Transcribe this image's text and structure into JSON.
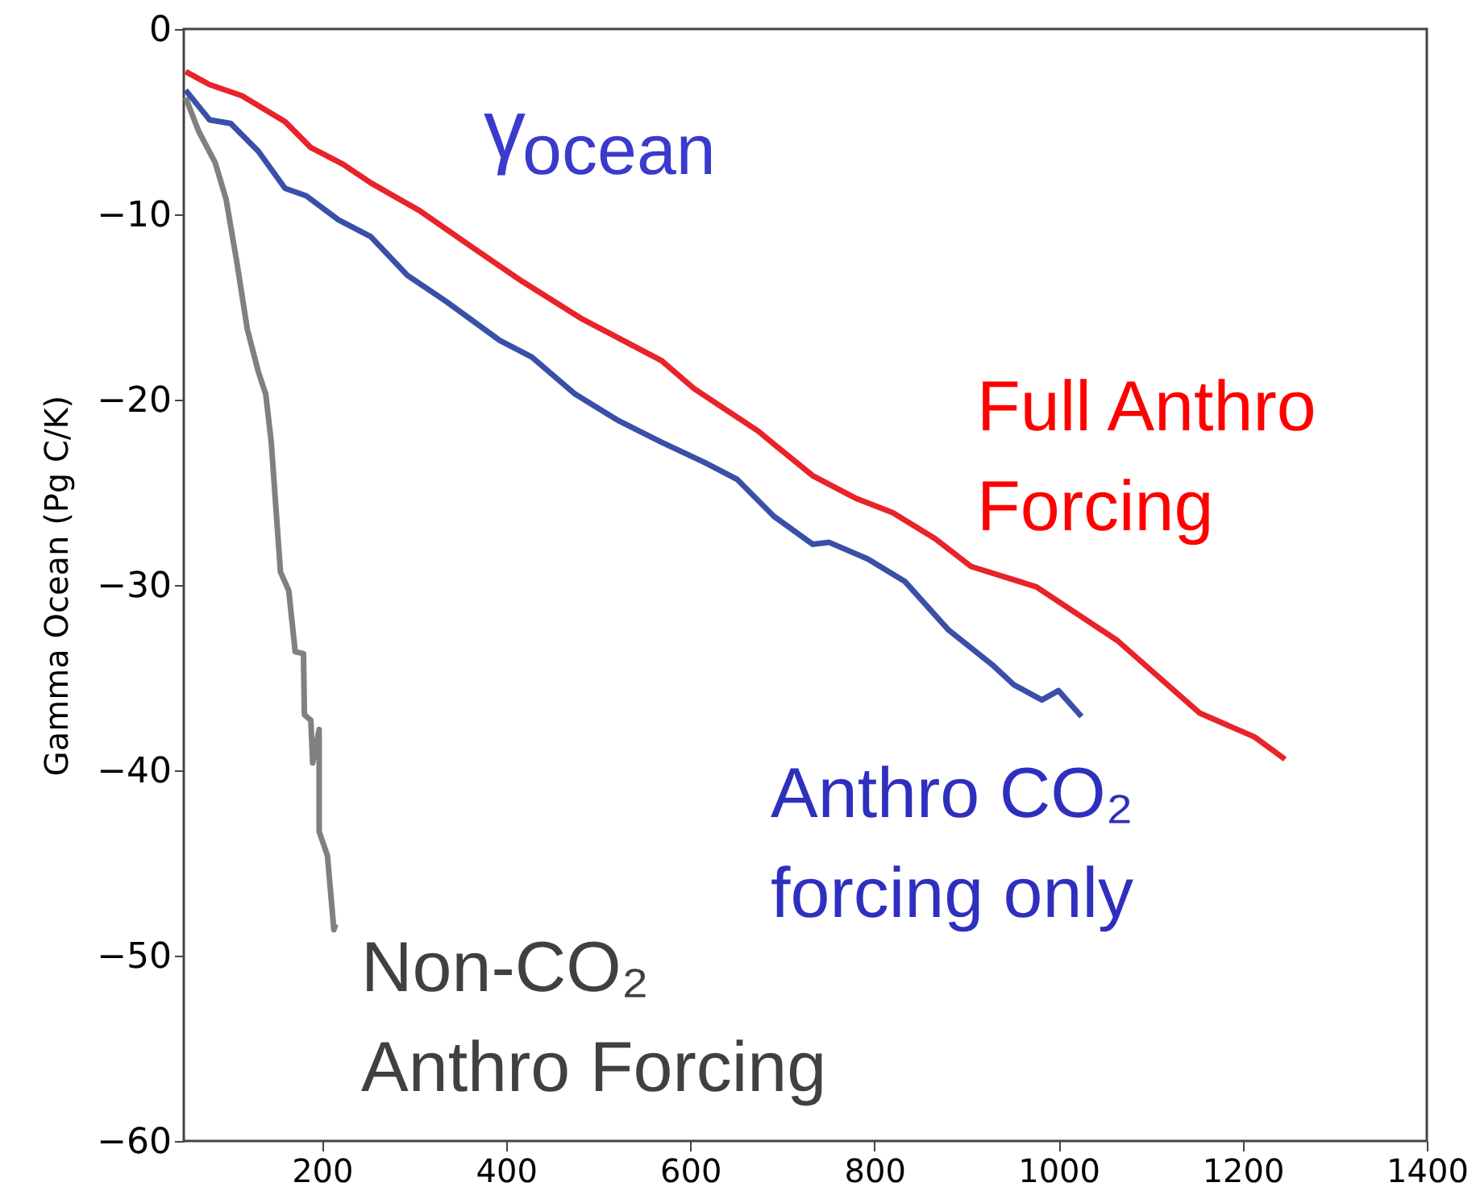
{
  "chart_data": {
    "type": "line",
    "ylabel": "Gamma Ocean (Pg C/K)",
    "xlim": [
      50,
      1400
    ],
    "xticks": [
      200,
      400,
      600,
      800,
      1000,
      1200,
      1400
    ],
    "ylim": [
      -60,
      0
    ],
    "yticks": [
      0,
      -10,
      -20,
      -30,
      -40,
      -50,
      -60
    ],
    "grid": false,
    "annotations": [
      "γ$_{ocean}$"
    ],
    "series": [
      {
        "name": "Full Anthro\nForcing",
        "color": "#e8232a",
        "x": [
          52,
          78,
          113,
          160,
          188,
          223,
          253,
          306,
          364,
          417,
          481,
          569,
          604,
          674,
          691,
          733,
          779,
          820,
          866,
          905,
          976,
          1064,
          1153,
          1213,
          1246
        ],
        "values": [
          -2.3,
          -3.0,
          -3.6,
          -5.0,
          -6.4,
          -7.3,
          -8.3,
          -9.8,
          -11.8,
          -13.6,
          -15.6,
          -17.9,
          -19.4,
          -21.7,
          -22.4,
          -24.1,
          -25.3,
          -26.1,
          -27.5,
          -29.0,
          -30.1,
          -33.0,
          -36.9,
          -38.2,
          -39.4
        ]
      },
      {
        "name": "Anthro CO₂\nforcing only",
        "color": "#3a4fa8",
        "x": [
          52,
          78,
          101,
          131,
          160,
          183,
          218,
          253,
          293,
          335,
          393,
          428,
          475,
          521,
          569,
          616,
          651,
          679,
          691,
          733,
          751,
          793,
          833,
          880,
          928,
          952,
          982,
          1000,
          1025
        ],
        "values": [
          -3.3,
          -4.9,
          -5.1,
          -6.6,
          -8.6,
          -9.0,
          -10.3,
          -11.2,
          -13.3,
          -14.7,
          -16.8,
          -17.7,
          -19.7,
          -21.1,
          -22.3,
          -23.4,
          -24.3,
          -25.7,
          -26.3,
          -27.8,
          -27.7,
          -28.6,
          -29.8,
          -32.4,
          -34.3,
          -35.4,
          -36.2,
          -35.7,
          -37.1
        ]
      },
      {
        "name": "Non-CO₂\nAnthro Forcing",
        "color": "#808080",
        "x": [
          52,
          66,
          84,
          96,
          108,
          119,
          131,
          139,
          145,
          155,
          164,
          171,
          180,
          181,
          188,
          190,
          197,
          197,
          206,
          213,
          215
        ],
        "values": [
          -3.7,
          -5.5,
          -7.2,
          -9.2,
          -12.7,
          -16.2,
          -18.5,
          -19.7,
          -22.3,
          -29.3,
          -30.3,
          -33.6,
          -33.7,
          -37.0,
          -37.3,
          -39.6,
          -37.8,
          -43.3,
          -44.6,
          -48.6,
          -48.3
        ]
      }
    ]
  }
}
